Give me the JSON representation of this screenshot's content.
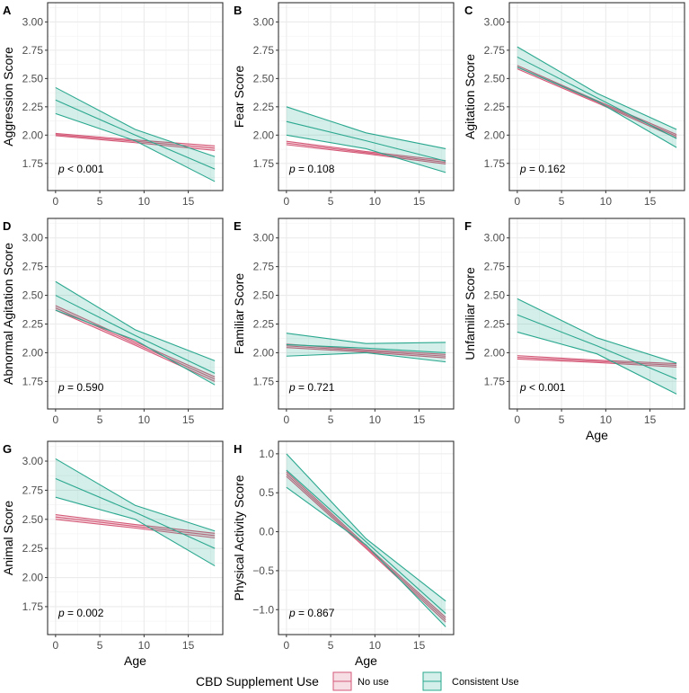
{
  "legend": {
    "title": "CBD Supplement Use",
    "items": [
      {
        "label": "No use",
        "color": "#d45a78"
      },
      {
        "label": "Consistent Use",
        "color": "#2aa88f"
      }
    ]
  },
  "chart_data": [
    {
      "type": "line",
      "letter": "A",
      "ylabel": "Aggression Score",
      "xlabel": "",
      "p_prefix": "p",
      "p_text": " < 0.001",
      "xlim": [
        -0.9,
        18.9
      ],
      "ylim": [
        1.51,
        3.17
      ],
      "xticks": [
        0,
        5,
        10,
        15
      ],
      "yticks": [
        "1.75",
        "2.00",
        "2.25",
        "2.50",
        "2.75",
        "3.00"
      ],
      "x": [
        0,
        9,
        18
      ],
      "series": [
        {
          "name": "No use",
          "fit": [
            2.005,
            1.945,
            1.885
          ],
          "lower": [
            1.995,
            1.933,
            1.865
          ],
          "upper": [
            2.015,
            1.957,
            1.905
          ]
        },
        {
          "name": "Consistent Use",
          "fit": [
            2.31,
            2.0,
            1.7
          ],
          "lower": [
            2.19,
            1.95,
            1.59
          ],
          "upper": [
            2.42,
            2.05,
            1.81
          ]
        }
      ]
    },
    {
      "type": "line",
      "letter": "B",
      "ylabel": "Fear Score",
      "xlabel": "",
      "p_prefix": "p",
      "p_text": " = 0.108",
      "xlim": [
        -0.9,
        18.9
      ],
      "ylim": [
        1.51,
        3.17
      ],
      "xticks": [
        0,
        5,
        10,
        15
      ],
      "yticks": [
        "1.75",
        "2.00",
        "2.25",
        "2.50",
        "2.75",
        "3.00"
      ],
      "x": [
        0,
        9,
        18
      ],
      "series": [
        {
          "name": "No use",
          "fit": [
            1.93,
            1.845,
            1.76
          ],
          "lower": [
            1.915,
            1.835,
            1.745
          ],
          "upper": [
            1.945,
            1.855,
            1.775
          ]
        },
        {
          "name": "Consistent Use",
          "fit": [
            2.12,
            1.95,
            1.77
          ],
          "lower": [
            2.0,
            1.88,
            1.67
          ],
          "upper": [
            2.25,
            2.02,
            1.88
          ]
        }
      ]
    },
    {
      "type": "line",
      "letter": "C",
      "ylabel": "Agitation Score",
      "xlabel": "",
      "p_prefix": "p",
      "p_text": " = 0.162",
      "xlim": [
        -0.9,
        18.9
      ],
      "ylim": [
        1.51,
        3.17
      ],
      "xticks": [
        0,
        5,
        10,
        15
      ],
      "yticks": [
        "1.75",
        "2.00",
        "2.25",
        "2.50",
        "2.75",
        "3.00"
      ],
      "x": [
        0,
        9,
        18
      ],
      "series": [
        {
          "name": "No use",
          "fit": [
            2.6,
            2.295,
            1.99
          ],
          "lower": [
            2.585,
            2.285,
            1.975
          ],
          "upper": [
            2.615,
            2.305,
            2.005
          ]
        },
        {
          "name": "Consistent Use",
          "fit": [
            2.69,
            2.33,
            1.97
          ],
          "lower": [
            2.6,
            2.3,
            1.89
          ],
          "upper": [
            2.78,
            2.37,
            2.05
          ]
        }
      ]
    },
    {
      "type": "line",
      "letter": "D",
      "ylabel": "Abnormal Agitation Score",
      "xlabel": "",
      "p_prefix": "p",
      "p_text": " = 0.590",
      "xlim": [
        -0.9,
        18.9
      ],
      "ylim": [
        1.51,
        3.17
      ],
      "xticks": [
        0,
        5,
        10,
        15
      ],
      "yticks": [
        "1.75",
        "2.00",
        "2.25",
        "2.50",
        "2.75",
        "3.00"
      ],
      "x": [
        0,
        9,
        18
      ],
      "series": [
        {
          "name": "No use",
          "fit": [
            2.39,
            2.08,
            1.77
          ],
          "lower": [
            2.37,
            2.065,
            1.75
          ],
          "upper": [
            2.41,
            2.095,
            1.79
          ]
        },
        {
          "name": "Consistent Use",
          "fit": [
            2.5,
            2.15,
            1.82
          ],
          "lower": [
            2.37,
            2.11,
            1.72
          ],
          "upper": [
            2.62,
            2.2,
            1.93
          ]
        }
      ]
    },
    {
      "type": "line",
      "letter": "E",
      "ylabel": "Familiar Score",
      "xlabel": "",
      "p_prefix": "p",
      "p_text": " = 0.721",
      "xlim": [
        -0.9,
        18.9
      ],
      "ylim": [
        1.51,
        3.17
      ],
      "xticks": [
        0,
        5,
        10,
        15
      ],
      "yticks": [
        "1.75",
        "2.00",
        "2.25",
        "2.50",
        "2.75",
        "3.00"
      ],
      "x": [
        0,
        9,
        18
      ],
      "series": [
        {
          "name": "No use",
          "fit": [
            2.06,
            2.015,
            1.97
          ],
          "lower": [
            2.045,
            2.005,
            1.955
          ],
          "upper": [
            2.075,
            2.025,
            1.985
          ]
        },
        {
          "name": "Consistent Use",
          "fit": [
            2.07,
            2.04,
            2.0
          ],
          "lower": [
            1.97,
            2.0,
            1.92
          ],
          "upper": [
            2.17,
            2.08,
            2.09
          ]
        }
      ]
    },
    {
      "type": "line",
      "letter": "F",
      "ylabel": "Unfamiliar Score",
      "xlabel": "Age",
      "p_prefix": "p",
      "p_text": " < 0.001",
      "xlim": [
        -0.9,
        18.9
      ],
      "ylim": [
        1.51,
        3.17
      ],
      "xticks": [
        0,
        5,
        10,
        15
      ],
      "yticks": [
        "1.75",
        "2.00",
        "2.25",
        "2.50",
        "2.75",
        "3.00"
      ],
      "x": [
        0,
        9,
        18
      ],
      "series": [
        {
          "name": "No use",
          "fit": [
            1.96,
            1.925,
            1.89
          ],
          "lower": [
            1.945,
            1.915,
            1.875
          ],
          "upper": [
            1.975,
            1.935,
            1.905
          ]
        },
        {
          "name": "Consistent Use",
          "fit": [
            2.33,
            2.06,
            1.77
          ],
          "lower": [
            2.18,
            1.99,
            1.64
          ],
          "upper": [
            2.47,
            2.13,
            1.91
          ]
        }
      ]
    },
    {
      "type": "line",
      "letter": "G",
      "ylabel": "Animal Score",
      "xlabel": "Age",
      "p_prefix": "p",
      "p_text": " = 0.002",
      "xlim": [
        -0.9,
        18.9
      ],
      "ylim": [
        1.51,
        3.17
      ],
      "xticks": [
        0,
        5,
        10,
        15
      ],
      "yticks": [
        "1.75",
        "2.00",
        "2.25",
        "2.50",
        "2.75",
        "3.00"
      ],
      "x": [
        0,
        9,
        18
      ],
      "series": [
        {
          "name": "No use",
          "fit": [
            2.52,
            2.44,
            2.36
          ],
          "lower": [
            2.5,
            2.425,
            2.34
          ],
          "upper": [
            2.54,
            2.455,
            2.38
          ]
        },
        {
          "name": "Consistent Use",
          "fit": [
            2.85,
            2.56,
            2.25
          ],
          "lower": [
            2.69,
            2.5,
            2.1
          ],
          "upper": [
            3.02,
            2.62,
            2.4
          ]
        }
      ]
    },
    {
      "type": "line",
      "letter": "H",
      "ylabel": "Physical Activity Score",
      "xlabel": "Age",
      "p_prefix": "p",
      "p_text": " = 0.867",
      "xlim": [
        -0.9,
        18.9
      ],
      "ylim": [
        -1.32,
        1.16
      ],
      "xticks": [
        0,
        5,
        10,
        15
      ],
      "yticks": [
        "-1.0",
        "-0.5",
        "0.0",
        "0.5",
        "1.0"
      ],
      "x": [
        0,
        9,
        18
      ],
      "series": [
        {
          "name": "No use",
          "fit": [
            0.74,
            -0.195,
            -1.13
          ],
          "lower": [
            0.71,
            -0.215,
            -1.16
          ],
          "upper": [
            0.77,
            -0.175,
            -1.1
          ]
        },
        {
          "name": "Consistent Use",
          "fit": [
            0.79,
            -0.13,
            -1.05
          ],
          "lower": [
            0.57,
            -0.17,
            -1.22
          ],
          "upper": [
            1.0,
            -0.09,
            -0.89
          ]
        }
      ]
    }
  ]
}
